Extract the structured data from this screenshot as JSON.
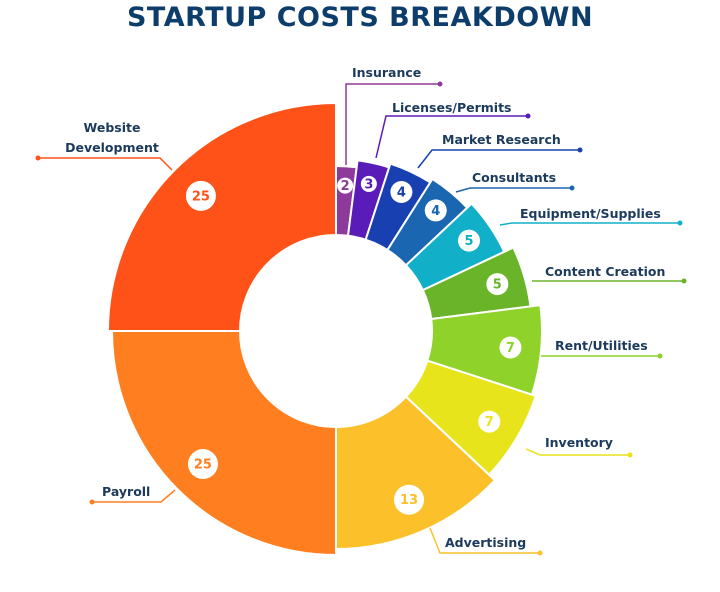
{
  "chart_data": {
    "type": "pie",
    "variant": "donut with varying outer radius",
    "title": "STARTUP COSTS BREAKDOWN",
    "start": "top, clockwise",
    "slices": [
      {
        "label": "Insurance",
        "value": 2,
        "color": "#8e3a9a"
      },
      {
        "label": "Licenses/Permits",
        "value": 3,
        "color": "#5a1cb8"
      },
      {
        "label": "Market Research",
        "value": 4,
        "color": "#1840b0"
      },
      {
        "label": "Consultants",
        "value": 4,
        "color": "#1a66b0"
      },
      {
        "label": "Equipment/Supplies",
        "value": 5,
        "color": "#12b0c8"
      },
      {
        "label": "Content Creation",
        "value": 5,
        "color": "#6ab42a"
      },
      {
        "label": "Rent/Utilities",
        "value": 7,
        "color": "#8ed22a"
      },
      {
        "label": "Inventory",
        "value": 7,
        "color": "#e8e41c"
      },
      {
        "label": "Advertising",
        "value": 13,
        "color": "#fbc02a"
      },
      {
        "label": "Payroll",
        "value": 25,
        "color": "#ff7f20"
      },
      {
        "label": "Website Development",
        "value": 25,
        "color": "#ff5219"
      }
    ],
    "title_color": "#0d3d6b"
  }
}
